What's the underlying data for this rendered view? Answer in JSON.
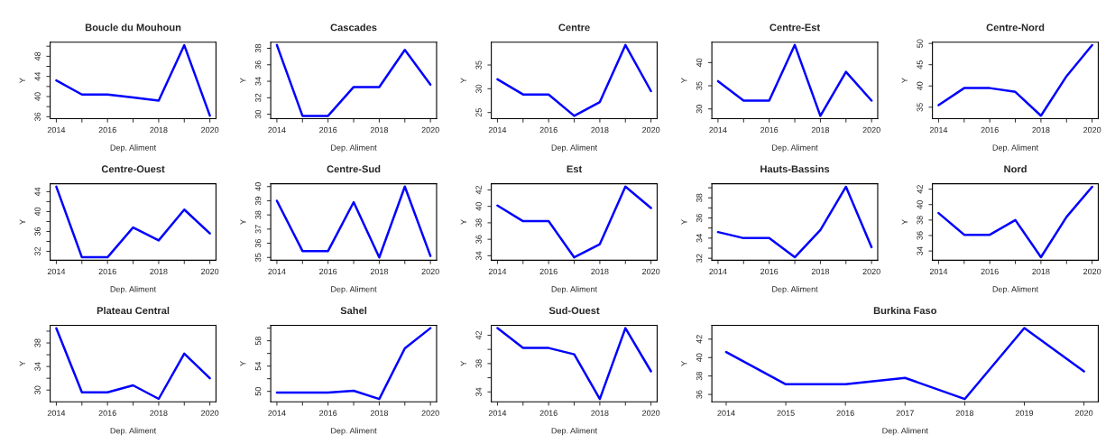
{
  "chart_data": [
    {
      "type": "line",
      "title": "Boucle du Mouhoun",
      "xlabel": "Dep. Aliment",
      "ylabel": "Y",
      "x": [
        2014,
        2015,
        2016,
        2017,
        2018,
        2019,
        2020
      ],
      "series": [
        {
          "color": "#0000ff",
          "values": [
            43.2,
            40.4,
            40.4,
            39.8,
            39.2,
            50.2,
            36.2
          ]
        }
      ],
      "xlim": [
        2013.76,
        2020.24
      ],
      "xticks": [
        2014,
        {
          "value": 2015,
          "label": null
        },
        2016,
        {
          "value": 2017,
          "label": null
        },
        2018,
        {
          "value": 2019,
          "label": null
        },
        2020
      ],
      "ylim": [
        35.6,
        50.8
      ],
      "yticks": [
        36,
        {
          "value": 38,
          "label": null
        },
        40,
        {
          "value": 42,
          "label": null
        },
        44,
        {
          "value": 46,
          "label": null
        },
        48,
        {
          "value": 50,
          "label": null
        }
      ],
      "grid": false,
      "legend": false
    },
    {
      "type": "line",
      "title": "Cascades",
      "xlabel": "Dep. Aliment",
      "ylabel": "Y",
      "x": [
        2014,
        2015,
        2016,
        2017,
        2018,
        2019,
        2020
      ],
      "series": [
        {
          "color": "#0000ff",
          "values": [
            38.4,
            29.8,
            29.8,
            33.3,
            33.3,
            37.8,
            33.6
          ]
        }
      ],
      "xlim": [
        2013.76,
        2020.24
      ],
      "xticks": [
        2014,
        {
          "value": 2015,
          "label": null
        },
        2016,
        {
          "value": 2017,
          "label": null
        },
        2018,
        {
          "value": 2019,
          "label": null
        },
        2020
      ],
      "ylim": [
        29.46,
        38.74
      ],
      "yticks": [
        30,
        32,
        34,
        36,
        38
      ],
      "grid": false,
      "legend": false
    },
    {
      "type": "line",
      "title": "Centre",
      "xlabel": "Dep. Aliment",
      "ylabel": "Y",
      "x": [
        2014,
        2015,
        2016,
        2017,
        2018,
        2019,
        2020
      ],
      "series": [
        {
          "color": "#0000ff",
          "values": [
            32,
            28.8,
            28.8,
            24.3,
            27.2,
            39.2,
            29.5
          ]
        }
      ],
      "xlim": [
        2013.76,
        2020.24
      ],
      "xticks": [
        2014,
        {
          "value": 2015,
          "label": null
        },
        2016,
        {
          "value": 2017,
          "label": null
        },
        2018,
        {
          "value": 2019,
          "label": null
        },
        2020
      ],
      "ylim": [
        23.7,
        39.8
      ],
      "yticks": [
        25,
        30,
        35
      ],
      "grid": false,
      "legend": false
    },
    {
      "type": "line",
      "title": "Centre-Est",
      "xlabel": "Dep. Aliment",
      "ylabel": "Y",
      "x": [
        2014,
        2015,
        2016,
        2017,
        2018,
        2019,
        2020
      ],
      "series": [
        {
          "color": "#0000ff",
          "values": [
            36,
            31.8,
            31.8,
            43.8,
            28.5,
            38,
            31.8
          ]
        }
      ],
      "xlim": [
        2013.76,
        2020.24
      ],
      "xticks": [
        2014,
        {
          "value": 2015,
          "label": null
        },
        2016,
        {
          "value": 2017,
          "label": null
        },
        2018,
        {
          "value": 2019,
          "label": null
        },
        2020
      ],
      "ylim": [
        27.9,
        44.4
      ],
      "yticks": [
        30,
        35,
        40
      ],
      "grid": false,
      "legend": false
    },
    {
      "type": "line",
      "title": "Centre-Nord",
      "xlabel": "Dep. Aliment",
      "ylabel": "Y",
      "x": [
        2014,
        2015,
        2016,
        2017,
        2018,
        2019,
        2020
      ],
      "series": [
        {
          "color": "#0000ff",
          "values": [
            35.5,
            39.5,
            39.5,
            38.6,
            33,
            42.3,
            49.6
          ]
        }
      ],
      "xlim": [
        2013.76,
        2020.24
      ],
      "xticks": [
        2014,
        {
          "value": 2015,
          "label": null
        },
        2016,
        {
          "value": 2017,
          "label": null
        },
        2018,
        {
          "value": 2019,
          "label": null
        },
        2020
      ],
      "ylim": [
        32.3,
        50.3
      ],
      "yticks": [
        35,
        40,
        45,
        50
      ],
      "grid": false,
      "legend": false
    },
    {
      "type": "line",
      "title": "Centre-Ouest",
      "xlabel": "Dep. Aliment",
      "ylabel": "Y",
      "x": [
        2014,
        2015,
        2016,
        2017,
        2018,
        2019,
        2020
      ],
      "series": [
        {
          "color": "#0000ff",
          "values": [
            45,
            30.8,
            30.8,
            36.8,
            34.2,
            40.4,
            35.6
          ]
        }
      ],
      "xlim": [
        2013.76,
        2020.24
      ],
      "xticks": [
        2014,
        {
          "value": 2015,
          "label": null
        },
        2016,
        {
          "value": 2017,
          "label": null
        },
        2018,
        {
          "value": 2019,
          "label": null
        },
        2020
      ],
      "ylim": [
        30.2,
        45.6
      ],
      "yticks": [
        32,
        {
          "value": 34,
          "label": null
        },
        36,
        {
          "value": 38,
          "label": null
        },
        40,
        {
          "value": 42,
          "label": null
        },
        44
      ],
      "grid": false,
      "legend": false
    },
    {
      "type": "line",
      "title": "Centre-Sud",
      "xlabel": "Dep. Aliment",
      "ylabel": "Y",
      "x": [
        2014,
        2015,
        2016,
        2017,
        2018,
        2019,
        2020
      ],
      "series": [
        {
          "color": "#0000ff",
          "values": [
            39,
            35.45,
            35.45,
            38.9,
            35,
            40,
            35.1
          ]
        }
      ],
      "xlim": [
        2013.76,
        2020.24
      ],
      "xticks": [
        2014,
        {
          "value": 2015,
          "label": null
        },
        2016,
        {
          "value": 2017,
          "label": null
        },
        2018,
        {
          "value": 2019,
          "label": null
        },
        2020
      ],
      "ylim": [
        34.8,
        40.2
      ],
      "yticks": [
        35,
        36,
        37,
        38,
        39,
        40
      ],
      "grid": false,
      "legend": false
    },
    {
      "type": "line",
      "title": "Est",
      "xlabel": "Dep. Aliment",
      "ylabel": "Y",
      "x": [
        2014,
        2015,
        2016,
        2017,
        2018,
        2019,
        2020
      ],
      "series": [
        {
          "color": "#0000ff",
          "values": [
            40.1,
            38.2,
            38.2,
            33.8,
            35.4,
            42.4,
            39.8
          ]
        }
      ],
      "xlim": [
        2013.76,
        2020.24
      ],
      "xticks": [
        2014,
        {
          "value": 2015,
          "label": null
        },
        2016,
        {
          "value": 2017,
          "label": null
        },
        2018,
        {
          "value": 2019,
          "label": null
        },
        2020
      ],
      "ylim": [
        33.45,
        42.75
      ],
      "yticks": [
        34,
        36,
        38,
        40,
        42
      ],
      "grid": false,
      "legend": false
    },
    {
      "type": "line",
      "title": "Hauts-Bassins",
      "xlabel": "Dep. Aliment",
      "ylabel": "Y",
      "x": [
        2014,
        2015,
        2016,
        2017,
        2018,
        2019,
        2020
      ],
      "series": [
        {
          "color": "#0000ff",
          "values": [
            34.6,
            34,
            34,
            32.1,
            34.8,
            39.1,
            33.1
          ]
        }
      ],
      "xlim": [
        2013.76,
        2020.24
      ],
      "xticks": [
        2014,
        {
          "value": 2015,
          "label": null
        },
        2016,
        {
          "value": 2017,
          "label": null
        },
        2018,
        {
          "value": 2019,
          "label": null
        },
        2020
      ],
      "ylim": [
        31.8,
        39.4
      ],
      "yticks": [
        32,
        {
          "value": 33,
          "label": null
        },
        34,
        {
          "value": 35,
          "label": null
        },
        36,
        {
          "value": 37,
          "label": null
        },
        38,
        {
          "value": 39,
          "label": null
        }
      ],
      "grid": false,
      "legend": false
    },
    {
      "type": "line",
      "title": "Nord",
      "xlabel": "Dep. Aliment",
      "ylabel": "Y",
      "x": [
        2014,
        2015,
        2016,
        2017,
        2018,
        2019,
        2020
      ],
      "series": [
        {
          "color": "#0000ff",
          "values": [
            38.9,
            36.1,
            36.1,
            38,
            33.2,
            38.4,
            42.3
          ]
        }
      ],
      "xlim": [
        2013.76,
        2020.24
      ],
      "xticks": [
        2014,
        {
          "value": 2015,
          "label": null
        },
        2016,
        {
          "value": 2017,
          "label": null
        },
        2018,
        {
          "value": 2019,
          "label": null
        },
        2020
      ],
      "ylim": [
        32.8,
        42.7
      ],
      "yticks": [
        34,
        36,
        38,
        40,
        42
      ],
      "grid": false,
      "legend": false
    },
    {
      "type": "line",
      "title": "Plateau Central",
      "xlabel": "Dep. Aliment",
      "ylabel": "Y",
      "x": [
        2014,
        2015,
        2016,
        2017,
        2018,
        2019,
        2020
      ],
      "series": [
        {
          "color": "#0000ff",
          "values": [
            40.5,
            29.6,
            29.6,
            30.8,
            28.5,
            36.2,
            32
          ]
        }
      ],
      "xlim": [
        2013.76,
        2020.24
      ],
      "xticks": [
        2014,
        {
          "value": 2015,
          "label": null
        },
        2016,
        {
          "value": 2017,
          "label": null
        },
        2018,
        {
          "value": 2019,
          "label": null
        },
        2020
      ],
      "ylim": [
        28.0,
        41.0
      ],
      "yticks": [
        30,
        {
          "value": 32,
          "label": null
        },
        34,
        {
          "value": 36,
          "label": null
        },
        38,
        {
          "value": 40,
          "label": null
        }
      ],
      "grid": false,
      "legend": false
    },
    {
      "type": "line",
      "title": "Sahel",
      "xlabel": "Dep. Aliment",
      "ylabel": "Y",
      "x": [
        2014,
        2015,
        2016,
        2017,
        2018,
        2019,
        2020
      ],
      "series": [
        {
          "color": "#0000ff",
          "values": [
            49.8,
            49.8,
            49.8,
            50.1,
            48.8,
            56.8,
            60
          ]
        }
      ],
      "xlim": [
        2013.76,
        2020.24
      ],
      "xticks": [
        2014,
        {
          "value": 2015,
          "label": null
        },
        2016,
        {
          "value": 2017,
          "label": null
        },
        2018,
        {
          "value": 2019,
          "label": null
        },
        2020
      ],
      "ylim": [
        48.35,
        60.45
      ],
      "yticks": [
        50,
        {
          "value": 52,
          "label": null
        },
        54,
        {
          "value": 56,
          "label": null
        },
        58,
        {
          "value": 60,
          "label": null
        }
      ],
      "grid": false,
      "legend": false
    },
    {
      "type": "line",
      "title": "Sud-Ouest",
      "xlabel": "Dep. Aliment",
      "ylabel": "Y",
      "x": [
        2014,
        2015,
        2016,
        2017,
        2018,
        2019,
        2020
      ],
      "series": [
        {
          "color": "#0000ff",
          "values": [
            43,
            40.2,
            40.2,
            39.3,
            33,
            43,
            36.9
          ]
        }
      ],
      "xlim": [
        2013.76,
        2020.24
      ],
      "xticks": [
        2014,
        {
          "value": 2015,
          "label": null
        },
        2016,
        {
          "value": 2017,
          "label": null
        },
        2018,
        {
          "value": 2019,
          "label": null
        },
        2020
      ],
      "ylim": [
        32.6,
        43.4
      ],
      "yticks": [
        34,
        {
          "value": 36,
          "label": null
        },
        38,
        {
          "value": 40,
          "label": null
        },
        42
      ],
      "grid": false,
      "legend": false
    },
    {
      "type": "line",
      "title": "Burkina Faso",
      "xlabel": "Dep. Aliment",
      "ylabel": "Y",
      "x": [
        2014,
        2015,
        2016,
        2017,
        2018,
        2019,
        2020
      ],
      "series": [
        {
          "color": "#0000ff",
          "values": [
            40.6,
            37.1,
            37.1,
            37.8,
            35.5,
            43.2,
            38.5
          ]
        }
      ],
      "xlim": [
        2013.76,
        2020.24
      ],
      "xticks": [
        2014,
        2015,
        2016,
        2017,
        2018,
        2019,
        2020
      ],
      "ylim": [
        35.2,
        43.5
      ],
      "yticks": [
        36,
        38,
        40,
        42
      ],
      "grid": false,
      "legend": false
    }
  ]
}
